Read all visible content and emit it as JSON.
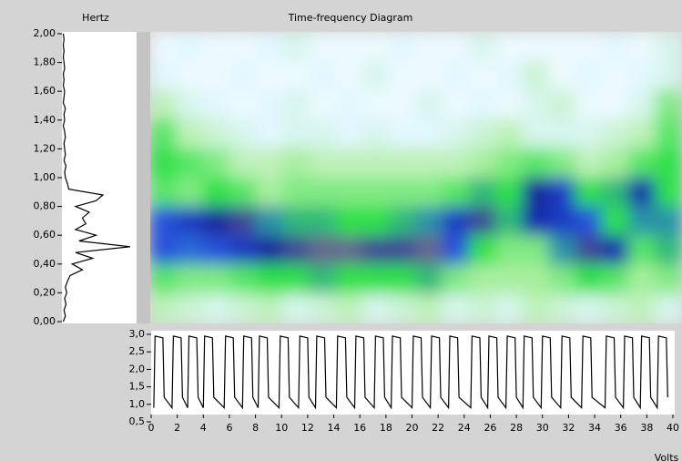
{
  "chart_data": [
    {
      "type": "line",
      "title": "Hertz",
      "orientation": "horizontal",
      "color": "#000000",
      "x": [
        0,
        0.04,
        0.08,
        0.12,
        0.16,
        0.2,
        0.24,
        0.28,
        0.32,
        0.36,
        0.4,
        0.44,
        0.48,
        0.52,
        0.56,
        0.6,
        0.64,
        0.68,
        0.72,
        0.76,
        0.8,
        0.84,
        0.88,
        0.92,
        0.96,
        1.0,
        1.04,
        1.08,
        1.12,
        1.16,
        1.2,
        1.24,
        1.28,
        1.32,
        1.36,
        1.4,
        1.44,
        1.48,
        1.52,
        1.56,
        1.6,
        1.64,
        1.68,
        1.72,
        1.76,
        1.8,
        1.84,
        1.88,
        1.92,
        1.96,
        2.0
      ],
      "values": [
        0.02,
        0.05,
        0.03,
        0.06,
        0.04,
        0.07,
        0.05,
        0.08,
        0.12,
        0.3,
        0.15,
        0.45,
        0.2,
        1.0,
        0.25,
        0.5,
        0.2,
        0.35,
        0.3,
        0.4,
        0.2,
        0.5,
        0.6,
        0.1,
        0.08,
        0.05,
        0.04,
        0.06,
        0.03,
        0.05,
        0.04,
        0.03,
        0.05,
        0.04,
        0.02,
        0.04,
        0.03,
        0.05,
        0.02,
        0.03,
        0.04,
        0.02,
        0.03,
        0.02,
        0.04,
        0.03,
        0.02,
        0.03,
        0.02,
        0.03,
        0.02
      ],
      "xlim": [
        0,
        2
      ],
      "ylim": [
        0,
        1
      ],
      "xticks": [
        {
          "value": 0,
          "label": "0,00"
        },
        {
          "value": 0.2,
          "label": "0,20"
        },
        {
          "value": 0.4,
          "label": "0,40"
        },
        {
          "value": 0.6,
          "label": "0,60"
        },
        {
          "value": 0.8,
          "label": "0,80"
        },
        {
          "value": 1.0,
          "label": "1,00"
        },
        {
          "value": 1.2,
          "label": "1,20"
        },
        {
          "value": 1.4,
          "label": "1,40"
        },
        {
          "value": 1.6,
          "label": "1,60"
        },
        {
          "value": 1.8,
          "label": "1,80"
        },
        {
          "value": 2.0,
          "label": "2,00"
        }
      ]
    },
    {
      "type": "heatmap",
      "title": "Time-frequency Diagram",
      "colorscale": [
        "#ffffff",
        "#dff6ff",
        "#b6f0a8",
        "#2ee04a",
        "#2a5ee8",
        "#101c9c",
        "#8a8a8a"
      ],
      "values": [
        [
          0.1,
          0.15,
          0.1,
          0.1,
          0.15,
          0.2,
          0.1,
          0.1,
          0.1,
          0.15,
          0.1,
          0.1,
          0.2,
          0.1,
          0.1,
          0.1,
          0.1,
          0.15,
          0.1,
          0.2
        ],
        [
          0.15,
          0.1,
          0.1,
          0.15,
          0.1,
          0.1,
          0.15,
          0.1,
          0.2,
          0.1,
          0.1,
          0.15,
          0.1,
          0.15,
          0.25,
          0.1,
          0.15,
          0.1,
          0.15,
          0.2
        ],
        [
          0.3,
          0.2,
          0.15,
          0.1,
          0.15,
          0.2,
          0.1,
          0.15,
          0.1,
          0.1,
          0.2,
          0.1,
          0.15,
          0.1,
          0.2,
          0.25,
          0.1,
          0.1,
          0.2,
          0.4
        ],
        [
          0.45,
          0.3,
          0.25,
          0.2,
          0.15,
          0.2,
          0.2,
          0.15,
          0.2,
          0.15,
          0.15,
          0.2,
          0.25,
          0.3,
          0.2,
          0.2,
          0.2,
          0.25,
          0.3,
          0.45
        ],
        [
          0.5,
          0.45,
          0.4,
          0.3,
          0.3,
          0.35,
          0.3,
          0.3,
          0.3,
          0.3,
          0.3,
          0.3,
          0.35,
          0.4,
          0.45,
          0.4,
          0.3,
          0.35,
          0.45,
          0.5
        ],
        [
          0.45,
          0.4,
          0.5,
          0.45,
          0.35,
          0.4,
          0.4,
          0.4,
          0.4,
          0.4,
          0.4,
          0.45,
          0.55,
          0.5,
          0.85,
          0.75,
          0.5,
          0.55,
          0.8,
          0.5
        ],
        [
          0.7,
          0.75,
          0.85,
          0.9,
          0.6,
          0.55,
          0.55,
          0.5,
          0.5,
          0.55,
          0.6,
          0.75,
          0.9,
          0.55,
          0.8,
          0.75,
          0.7,
          0.5,
          0.6,
          0.6
        ],
        [
          0.7,
          0.65,
          0.7,
          0.75,
          0.85,
          0.9,
          0.95,
          0.95,
          0.9,
          0.9,
          0.95,
          0.7,
          0.5,
          0.4,
          0.4,
          0.6,
          0.9,
          0.8,
          0.45,
          0.55
        ],
        [
          0.45,
          0.4,
          0.4,
          0.45,
          0.5,
          0.5,
          0.55,
          0.5,
          0.5,
          0.5,
          0.55,
          0.4,
          0.35,
          0.35,
          0.35,
          0.4,
          0.5,
          0.45,
          0.35,
          0.4
        ],
        [
          0.3,
          0.25,
          0.2,
          0.25,
          0.3,
          0.2,
          0.25,
          0.3,
          0.2,
          0.25,
          0.3,
          0.2,
          0.25,
          0.2,
          0.3,
          0.25,
          0.2,
          0.25,
          0.3,
          0.2
        ]
      ]
    },
    {
      "type": "line",
      "xlabel": "Volts",
      "color": "#000000",
      "x": [
        0.2,
        0.3,
        0.9,
        1.0,
        1.6,
        1.7,
        2.3,
        2.4,
        2.8,
        2.9,
        3.5,
        3.6,
        4.0,
        4.1,
        4.7,
        4.8,
        5.6,
        5.7,
        6.3,
        6.4,
        7.0,
        7.1,
        7.7,
        7.8,
        8.2,
        8.3,
        8.9,
        9.0,
        9.8,
        9.9,
        10.5,
        10.6,
        11.3,
        11.4,
        12.0,
        12.1,
        12.6,
        12.7,
        13.3,
        13.4,
        14.2,
        14.3,
        14.9,
        15.0,
        15.6,
        15.7,
        16.3,
        16.4,
        17.1,
        17.2,
        17.8,
        17.9,
        18.4,
        18.5,
        19.1,
        19.2,
        20.0,
        20.1,
        20.7,
        20.8,
        21.4,
        21.5,
        22.1,
        22.2,
        22.8,
        22.9,
        23.5,
        23.6,
        24.5,
        24.6,
        25.2,
        25.3,
        25.8,
        25.9,
        26.5,
        26.6,
        27.2,
        27.3,
        27.9,
        28.0,
        28.5,
        28.6,
        29.2,
        29.3,
        29.9,
        30.0,
        30.6,
        30.7,
        31.4,
        31.5,
        32.1,
        32.2,
        33.0,
        33.1,
        33.7,
        33.8,
        34.8,
        34.9,
        35.5,
        35.6,
        36.2,
        36.3,
        36.9,
        37.0,
        37.5,
        37.6,
        38.2,
        38.3,
        38.8,
        38.9,
        39.5,
        39.6
      ],
      "values": [
        0.9,
        2.95,
        2.9,
        1.2,
        0.9,
        2.95,
        2.9,
        1.2,
        0.9,
        2.95,
        2.9,
        1.2,
        0.9,
        2.95,
        2.9,
        1.2,
        0.9,
        2.95,
        2.9,
        1.2,
        0.9,
        2.95,
        2.9,
        1.2,
        0.9,
        2.95,
        2.9,
        1.2,
        0.9,
        2.95,
        2.9,
        1.2,
        0.9,
        2.95,
        2.9,
        1.2,
        0.9,
        2.95,
        2.9,
        1.2,
        0.9,
        2.95,
        2.9,
        1.2,
        0.9,
        2.95,
        2.9,
        1.2,
        0.9,
        2.95,
        2.9,
        1.2,
        0.9,
        2.95,
        2.9,
        1.2,
        0.9,
        2.95,
        2.9,
        1.2,
        0.9,
        2.95,
        2.9,
        1.2,
        0.9,
        2.95,
        2.9,
        1.2,
        0.9,
        2.95,
        2.9,
        1.2,
        0.9,
        2.95,
        2.9,
        1.2,
        0.9,
        2.95,
        2.9,
        1.2,
        0.9,
        2.95,
        2.9,
        1.2,
        0.9,
        2.95,
        2.9,
        1.2,
        0.9,
        2.95,
        2.9,
        1.2,
        0.9,
        2.95,
        2.9,
        1.2,
        0.9,
        2.95,
        2.9,
        1.2,
        0.9,
        2.95,
        2.9,
        1.2,
        0.9,
        2.95,
        2.9,
        1.2,
        0.9,
        2.95,
        2.9,
        1.2
      ],
      "xlim": [
        0,
        40
      ],
      "ylim": [
        0.5,
        3.0
      ],
      "xticks": [
        0,
        2,
        4,
        6,
        8,
        10,
        12,
        14,
        16,
        18,
        20,
        22,
        24,
        26,
        28,
        30,
        32,
        34,
        36,
        38,
        40
      ],
      "yticks": [
        {
          "value": 0.5,
          "label": "0,5"
        },
        {
          "value": 1.0,
          "label": "1,0"
        },
        {
          "value": 1.5,
          "label": "1,5"
        },
        {
          "value": 2.0,
          "label": "2,0"
        },
        {
          "value": 2.5,
          "label": "2,5"
        },
        {
          "value": 3.0,
          "label": "3,0"
        }
      ]
    }
  ]
}
